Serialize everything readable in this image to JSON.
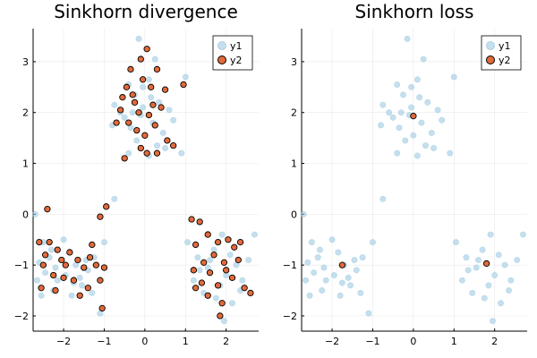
{
  "chart_data": [
    {
      "type": "scatter",
      "title": "Sinkhorn divergence",
      "xlabel": "",
      "ylabel": "",
      "xlim": [
        -2.75,
        2.8
      ],
      "ylim": [
        -2.3,
        3.65
      ],
      "xticks": [
        -2,
        -1,
        0,
        1,
        2
      ],
      "yticks": [
        -2,
        -1,
        0,
        1,
        2,
        3
      ],
      "xtick_labels": [
        "−2",
        "−1",
        "0",
        "1",
        "2"
      ],
      "ytick_labels": [
        "−2",
        "−1",
        "0",
        "1",
        "2",
        "3"
      ],
      "grid": true,
      "legend": "top-right",
      "series": [
        {
          "name": "y1",
          "color": "#9ecae1",
          "opacity": 0.6,
          "points": [
            [
              -0.15,
              3.45
            ],
            [
              0.25,
              3.05
            ],
            [
              -0.4,
              2.55
            ],
            [
              -0.05,
              2.5
            ],
            [
              0.1,
              2.65
            ],
            [
              -0.6,
              2.0
            ],
            [
              -0.75,
              2.15
            ],
            [
              -0.25,
              2.35
            ],
            [
              0.35,
              2.2
            ],
            [
              0.6,
              2.05
            ],
            [
              -0.1,
              1.95
            ],
            [
              0.2,
              1.8
            ],
            [
              -0.35,
              1.7
            ],
            [
              0.45,
              1.6
            ],
            [
              -0.5,
              1.9
            ],
            [
              0.7,
              1.85
            ],
            [
              1.0,
              2.7
            ],
            [
              -0.2,
              1.45
            ],
            [
              0.0,
              1.55
            ],
            [
              0.3,
              1.35
            ],
            [
              -0.4,
              1.2
            ],
            [
              0.1,
              1.15
            ],
            [
              0.9,
              1.2
            ],
            [
              -0.8,
              1.75
            ],
            [
              0.5,
              1.3
            ],
            [
              -0.05,
              2.1
            ],
            [
              0.15,
              2.3
            ],
            [
              -0.3,
              2.0
            ],
            [
              -2.7,
              0.0
            ],
            [
              -2.5,
              -0.55
            ],
            [
              -2.3,
              -0.7
            ],
            [
              -2.6,
              -0.95
            ],
            [
              -2.2,
              -1.05
            ],
            [
              -2.0,
              -0.5
            ],
            [
              -1.85,
              -0.75
            ],
            [
              -1.7,
              -1.0
            ],
            [
              -2.45,
              -1.15
            ],
            [
              -2.15,
              -1.3
            ],
            [
              -1.95,
              -1.2
            ],
            [
              -1.55,
              -1.4
            ],
            [
              -1.4,
              -1.1
            ],
            [
              -2.55,
              -1.6
            ],
            [
              -2.25,
              -1.5
            ],
            [
              -1.8,
              -1.6
            ],
            [
              -1.3,
              -1.55
            ],
            [
              -1.1,
              -1.95
            ],
            [
              -1.25,
              -0.85
            ],
            [
              -1.0,
              -0.55
            ],
            [
              -0.75,
              0.3
            ],
            [
              -2.65,
              -1.3
            ],
            [
              -1.6,
              -1.25
            ],
            [
              -1.45,
              -0.9
            ],
            [
              -1.75,
              -1.35
            ],
            [
              -2.35,
              -0.85
            ],
            [
              1.05,
              -0.55
            ],
            [
              1.3,
              -0.85
            ],
            [
              1.55,
              -1.05
            ],
            [
              1.2,
              -1.3
            ],
            [
              1.7,
              -0.7
            ],
            [
              1.9,
              -0.4
            ],
            [
              2.1,
              -0.8
            ],
            [
              2.25,
              -1.0
            ],
            [
              2.0,
              -1.2
            ],
            [
              1.85,
              -1.4
            ],
            [
              2.35,
              -1.5
            ],
            [
              2.55,
              -0.9
            ],
            [
              2.7,
              -0.4
            ],
            [
              1.45,
              -1.55
            ],
            [
              1.75,
              -1.65
            ],
            [
              2.15,
              -1.75
            ],
            [
              1.95,
              -2.1
            ],
            [
              1.6,
              -0.9
            ],
            [
              2.4,
              -1.3
            ],
            [
              1.35,
              -1.1
            ]
          ]
        },
        {
          "name": "y2",
          "color": "#e26a3b",
          "opacity": 1.0,
          "points": [
            [
              0.05,
              3.25
            ],
            [
              -0.1,
              3.05
            ],
            [
              -0.35,
              2.85
            ],
            [
              0.3,
              2.85
            ],
            [
              -0.05,
              2.65
            ],
            [
              -0.45,
              2.5
            ],
            [
              0.15,
              2.5
            ],
            [
              0.5,
              2.45
            ],
            [
              0.95,
              2.55
            ],
            [
              -0.55,
              2.3
            ],
            [
              -0.25,
              2.2
            ],
            [
              0.2,
              2.15
            ],
            [
              0.4,
              2.1
            ],
            [
              -0.6,
              2.05
            ],
            [
              -0.15,
              2.0
            ],
            [
              0.1,
              1.95
            ],
            [
              0.25,
              1.75
            ],
            [
              -0.4,
              1.8
            ],
            [
              -0.2,
              1.65
            ],
            [
              0.0,
              1.55
            ],
            [
              0.55,
              1.45
            ],
            [
              0.7,
              1.35
            ],
            [
              -0.1,
              1.3
            ],
            [
              0.3,
              1.2
            ],
            [
              -0.5,
              1.1
            ],
            [
              0.05,
              1.2
            ],
            [
              -0.7,
              1.8
            ],
            [
              -0.3,
              2.35
            ],
            [
              -2.4,
              0.1
            ],
            [
              -2.6,
              -0.55
            ],
            [
              -2.35,
              -0.55
            ],
            [
              -2.15,
              -0.7
            ],
            [
              -2.45,
              -0.8
            ],
            [
              -2.05,
              -0.9
            ],
            [
              -1.85,
              -0.75
            ],
            [
              -1.95,
              -1.0
            ],
            [
              -1.65,
              -0.9
            ],
            [
              -2.5,
              -1.0
            ],
            [
              -2.25,
              -1.2
            ],
            [
              -2.0,
              -1.25
            ],
            [
              -1.75,
              -1.3
            ],
            [
              -1.5,
              -1.05
            ],
            [
              -1.35,
              -0.85
            ],
            [
              -1.2,
              -1.0
            ],
            [
              -1.1,
              -1.3
            ],
            [
              -1.4,
              -1.45
            ],
            [
              -1.6,
              -1.6
            ],
            [
              -2.2,
              -1.5
            ],
            [
              -2.55,
              -1.45
            ],
            [
              -1.05,
              -1.85
            ],
            [
              -0.95,
              0.15
            ],
            [
              -1.1,
              -0.05
            ],
            [
              -1.3,
              -0.6
            ],
            [
              -1.0,
              -1.05
            ],
            [
              1.15,
              -0.1
            ],
            [
              1.35,
              -0.15
            ],
            [
              1.55,
              -0.4
            ],
            [
              1.25,
              -0.6
            ],
            [
              1.8,
              -0.55
            ],
            [
              2.05,
              -0.5
            ],
            [
              2.2,
              -0.65
            ],
            [
              1.7,
              -0.8
            ],
            [
              1.45,
              -0.95
            ],
            [
              1.95,
              -0.95
            ],
            [
              2.3,
              -0.9
            ],
            [
              1.2,
              -1.1
            ],
            [
              1.6,
              -1.15
            ],
            [
              2.0,
              -1.1
            ],
            [
              2.15,
              -1.25
            ],
            [
              1.4,
              -1.35
            ],
            [
              1.8,
              -1.4
            ],
            [
              2.45,
              -1.45
            ],
            [
              1.55,
              -1.6
            ],
            [
              1.9,
              -1.75
            ],
            [
              2.6,
              -1.55
            ],
            [
              1.85,
              -2.0
            ],
            [
              1.25,
              -1.45
            ],
            [
              2.35,
              -0.55
            ]
          ]
        }
      ]
    },
    {
      "type": "scatter",
      "title": "Sinkhorn loss",
      "xlabel": "",
      "ylabel": "",
      "xlim": [
        -2.75,
        2.8
      ],
      "ylim": [
        -2.3,
        3.65
      ],
      "xticks": [
        -2,
        -1,
        0,
        1,
        2
      ],
      "yticks": [
        -2,
        -1,
        0,
        1,
        2,
        3
      ],
      "xtick_labels": [
        "−2",
        "−1",
        "0",
        "1",
        "2"
      ],
      "ytick_labels": [
        "−2",
        "−1",
        "0",
        "1",
        "2",
        "3"
      ],
      "grid": true,
      "legend": "top-right",
      "series": [
        {
          "name": "y1",
          "color": "#9ecae1",
          "opacity": 0.6,
          "points": [
            [
              -0.15,
              3.45
            ],
            [
              0.25,
              3.05
            ],
            [
              -0.4,
              2.55
            ],
            [
              -0.05,
              2.5
            ],
            [
              0.1,
              2.65
            ],
            [
              -0.6,
              2.0
            ],
            [
              -0.75,
              2.15
            ],
            [
              -0.25,
              2.35
            ],
            [
              0.35,
              2.2
            ],
            [
              0.6,
              2.05
            ],
            [
              -0.1,
              1.95
            ],
            [
              0.2,
              1.8
            ],
            [
              -0.35,
              1.7
            ],
            [
              0.45,
              1.6
            ],
            [
              -0.5,
              1.9
            ],
            [
              0.7,
              1.85
            ],
            [
              1.0,
              2.7
            ],
            [
              -0.2,
              1.45
            ],
            [
              0.0,
              1.55
            ],
            [
              0.3,
              1.35
            ],
            [
              -0.4,
              1.2
            ],
            [
              0.1,
              1.15
            ],
            [
              0.9,
              1.2
            ],
            [
              -0.8,
              1.75
            ],
            [
              0.5,
              1.3
            ],
            [
              -0.05,
              2.1
            ],
            [
              0.15,
              2.3
            ],
            [
              -0.3,
              2.0
            ],
            [
              -2.7,
              0.0
            ],
            [
              -2.5,
              -0.55
            ],
            [
              -2.3,
              -0.7
            ],
            [
              -2.6,
              -0.95
            ],
            [
              -2.2,
              -1.05
            ],
            [
              -2.0,
              -0.5
            ],
            [
              -1.85,
              -0.75
            ],
            [
              -1.7,
              -1.0
            ],
            [
              -2.45,
              -1.15
            ],
            [
              -2.15,
              -1.3
            ],
            [
              -1.95,
              -1.2
            ],
            [
              -1.55,
              -1.4
            ],
            [
              -1.4,
              -1.1
            ],
            [
              -2.55,
              -1.6
            ],
            [
              -2.25,
              -1.5
            ],
            [
              -1.8,
              -1.6
            ],
            [
              -1.3,
              -1.55
            ],
            [
              -1.1,
              -1.95
            ],
            [
              -1.25,
              -0.85
            ],
            [
              -1.0,
              -0.55
            ],
            [
              -0.75,
              0.3
            ],
            [
              -2.65,
              -1.3
            ],
            [
              -1.6,
              -1.25
            ],
            [
              -1.45,
              -0.9
            ],
            [
              -1.75,
              -1.35
            ],
            [
              -2.35,
              -0.85
            ],
            [
              1.05,
              -0.55
            ],
            [
              1.3,
              -0.85
            ],
            [
              1.55,
              -1.05
            ],
            [
              1.2,
              -1.3
            ],
            [
              1.7,
              -0.7
            ],
            [
              1.9,
              -0.4
            ],
            [
              2.1,
              -0.8
            ],
            [
              2.25,
              -1.0
            ],
            [
              2.0,
              -1.2
            ],
            [
              1.85,
              -1.4
            ],
            [
              2.35,
              -1.5
            ],
            [
              2.55,
              -0.9
            ],
            [
              2.7,
              -0.4
            ],
            [
              1.45,
              -1.55
            ],
            [
              1.75,
              -1.65
            ],
            [
              2.15,
              -1.75
            ],
            [
              1.95,
              -2.1
            ],
            [
              1.6,
              -0.9
            ],
            [
              2.4,
              -1.3
            ],
            [
              1.35,
              -1.1
            ]
          ]
        },
        {
          "name": "y2",
          "color": "#e26a3b",
          "opacity": 1.0,
          "points": [
            [
              0.0,
              1.93
            ],
            [
              -1.75,
              -1.0
            ],
            [
              1.8,
              -0.97
            ]
          ]
        }
      ]
    }
  ]
}
